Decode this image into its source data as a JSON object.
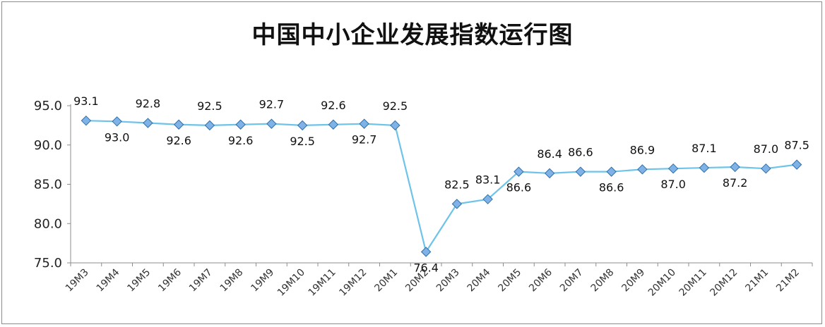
{
  "chart_data": {
    "type": "line",
    "title": "中国中小企业发展指数运行图",
    "xlabel": "",
    "ylabel": "",
    "categories": [
      "19M3",
      "19M4",
      "19M5",
      "19M6",
      "19M7",
      "19M8",
      "19M9",
      "19M10",
      "19M11",
      "19M12",
      "20M1",
      "20M2",
      "20M3",
      "20M4",
      "20M5",
      "20M6",
      "20M7",
      "20M8",
      "20M9",
      "20M10",
      "20M11",
      "20M12",
      "21M1",
      "21M2"
    ],
    "series": [
      {
        "values": [
          93.1,
          93.0,
          92.8,
          92.6,
          92.5,
          92.6,
          92.7,
          92.5,
          92.6,
          92.7,
          92.5,
          76.4,
          82.5,
          83.1,
          86.6,
          86.4,
          86.6,
          86.6,
          86.9,
          87.0,
          87.1,
          87.2,
          87.0,
          87.5
        ],
        "labels": [
          "93.1",
          "93.0",
          "92.8",
          "92.6",
          "92.5",
          "92.6",
          "92.7",
          "92.5",
          "92.6",
          "92.7",
          "92.5",
          "76.4",
          "82.5",
          "83.1",
          "86.6",
          "86.4",
          "86.6",
          "86.6",
          "86.9",
          "87.0",
          "87.1",
          "87.2",
          "87.0",
          "87.5"
        ],
        "label_position": [
          "above",
          "below",
          "above",
          "below",
          "above",
          "below",
          "above",
          "below",
          "above",
          "below",
          "above",
          "below",
          "above",
          "above",
          "below",
          "above",
          "above",
          "below",
          "above",
          "below",
          "above",
          "below",
          "above",
          "above"
        ]
      }
    ],
    "ylim": [
      75.0,
      95.0
    ],
    "yticks": [
      "75.0",
      "80.0",
      "85.0",
      "90.0",
      "95.0"
    ],
    "grid": false,
    "legend": "none",
    "colors": {
      "line": "#6ec3e9",
      "marker_fill": "#7fb3e8",
      "marker_stroke": "#2f6fa8",
      "axis": "#8c8c8c"
    }
  }
}
